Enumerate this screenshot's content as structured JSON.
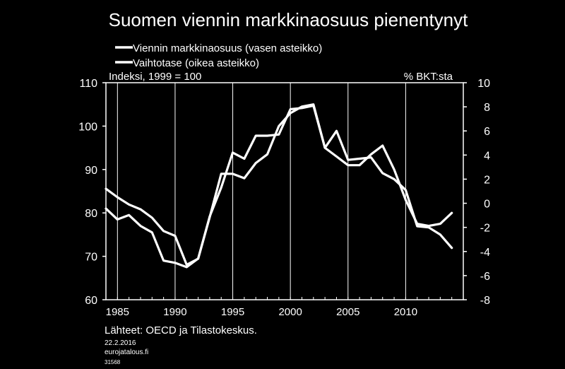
{
  "chart_data": {
    "type": "line",
    "title": "Suomen viennin markkinaosuus pienentynyt",
    "left_axis_label": "Indeksi, 1999 = 100",
    "right_axis_label": "% BKT:sta",
    "legend_position": "top-left",
    "grid": "vertical",
    "xlim": [
      1984,
      2015
    ],
    "ylim_left": [
      60,
      110
    ],
    "ylim_right": [
      -8,
      10
    ],
    "x_ticks": [
      1985,
      1990,
      1995,
      2000,
      2005,
      2010
    ],
    "y_ticks_left": [
      "110",
      "100",
      "90",
      "80",
      "70",
      "60"
    ],
    "y_ticks_right": [
      "10",
      "8",
      "6",
      "4",
      "2",
      "0",
      "-2",
      "-4",
      "-6",
      "-8"
    ],
    "series": [
      {
        "name": "Viennin markkinaosuus (vasen asteikko)",
        "axis": "left",
        "x": [
          1984,
          1985,
          1986,
          1987,
          1988,
          1989,
          1990,
          1991,
          1992,
          1993,
          1994,
          1995,
          1996,
          1997,
          1998,
          1999,
          2000,
          2001,
          2002,
          2003,
          2004,
          2005,
          2006,
          2007,
          2008,
          2009,
          2010,
          2011,
          2012,
          2013,
          2014
        ],
        "y": [
          81,
          78.5,
          79.5,
          77,
          75.5,
          69,
          68.5,
          67.5,
          69.5,
          79,
          89,
          89,
          88,
          91.5,
          93.5,
          100,
          103,
          104.5,
          105,
          95,
          93,
          91,
          91,
          93.5,
          95.5,
          90,
          83,
          77.5,
          77,
          77.5,
          80
        ]
      },
      {
        "name": "Vaihtotase (oikea asteikko)",
        "axis": "right",
        "x": [
          1984,
          1985,
          1986,
          1987,
          1988,
          1989,
          1990,
          1991,
          1992,
          1993,
          1994,
          1995,
          1996,
          1997,
          1998,
          1999,
          2000,
          2001,
          2002,
          2003,
          2004,
          2005,
          2006,
          2007,
          2008,
          2009,
          2010,
          2011,
          2012,
          2013,
          2014
        ],
        "y": [
          1.2,
          0.5,
          -0.1,
          -0.5,
          -1.2,
          -2.3,
          -2.7,
          -5.1,
          -4.6,
          -1.1,
          1.3,
          4.2,
          3.7,
          5.6,
          5.6,
          5.7,
          7.8,
          7.9,
          8.1,
          4.6,
          6.0,
          3.6,
          3.7,
          3.8,
          2.5,
          2.0,
          1.1,
          -1.9,
          -2.0,
          -2.6,
          -3.7
        ]
      }
    ]
  },
  "footer": {
    "sources": "Lähteet: OECD ja Tilastokeskus.",
    "date": "22.2.2016",
    "site": "eurojatalous.fi",
    "code": "31568"
  }
}
